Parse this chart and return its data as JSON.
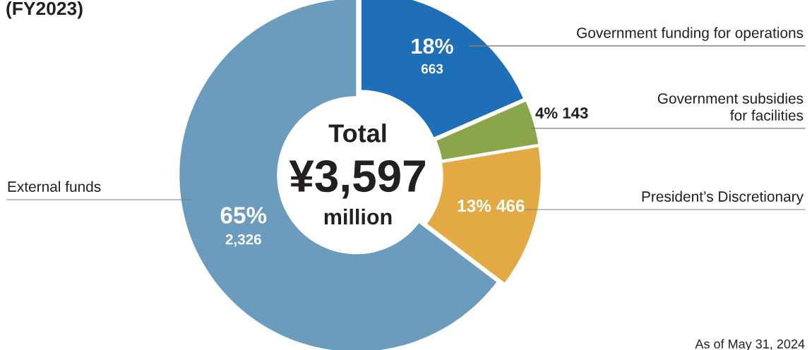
{
  "chart_data": {
    "type": "donut",
    "title": "(FY2023)",
    "categories": [
      "Government funding for operations",
      "Government subsidies\nfor facilities",
      "President’s Discretionary",
      "External funds"
    ],
    "values": [
      663,
      143,
      466,
      2326
    ],
    "colors": [
      "#1f6eb8",
      "#8ba64a",
      "#e3a942",
      "#6b9bbd"
    ],
    "value_labels": [
      "18%\n663",
      "4% 143",
      "13% 466",
      "65%\n2,326"
    ],
    "annotations": [
      "Total",
      "¥3,597",
      "million",
      "As of May 31, 2024"
    ],
    "legend": false
  }
}
